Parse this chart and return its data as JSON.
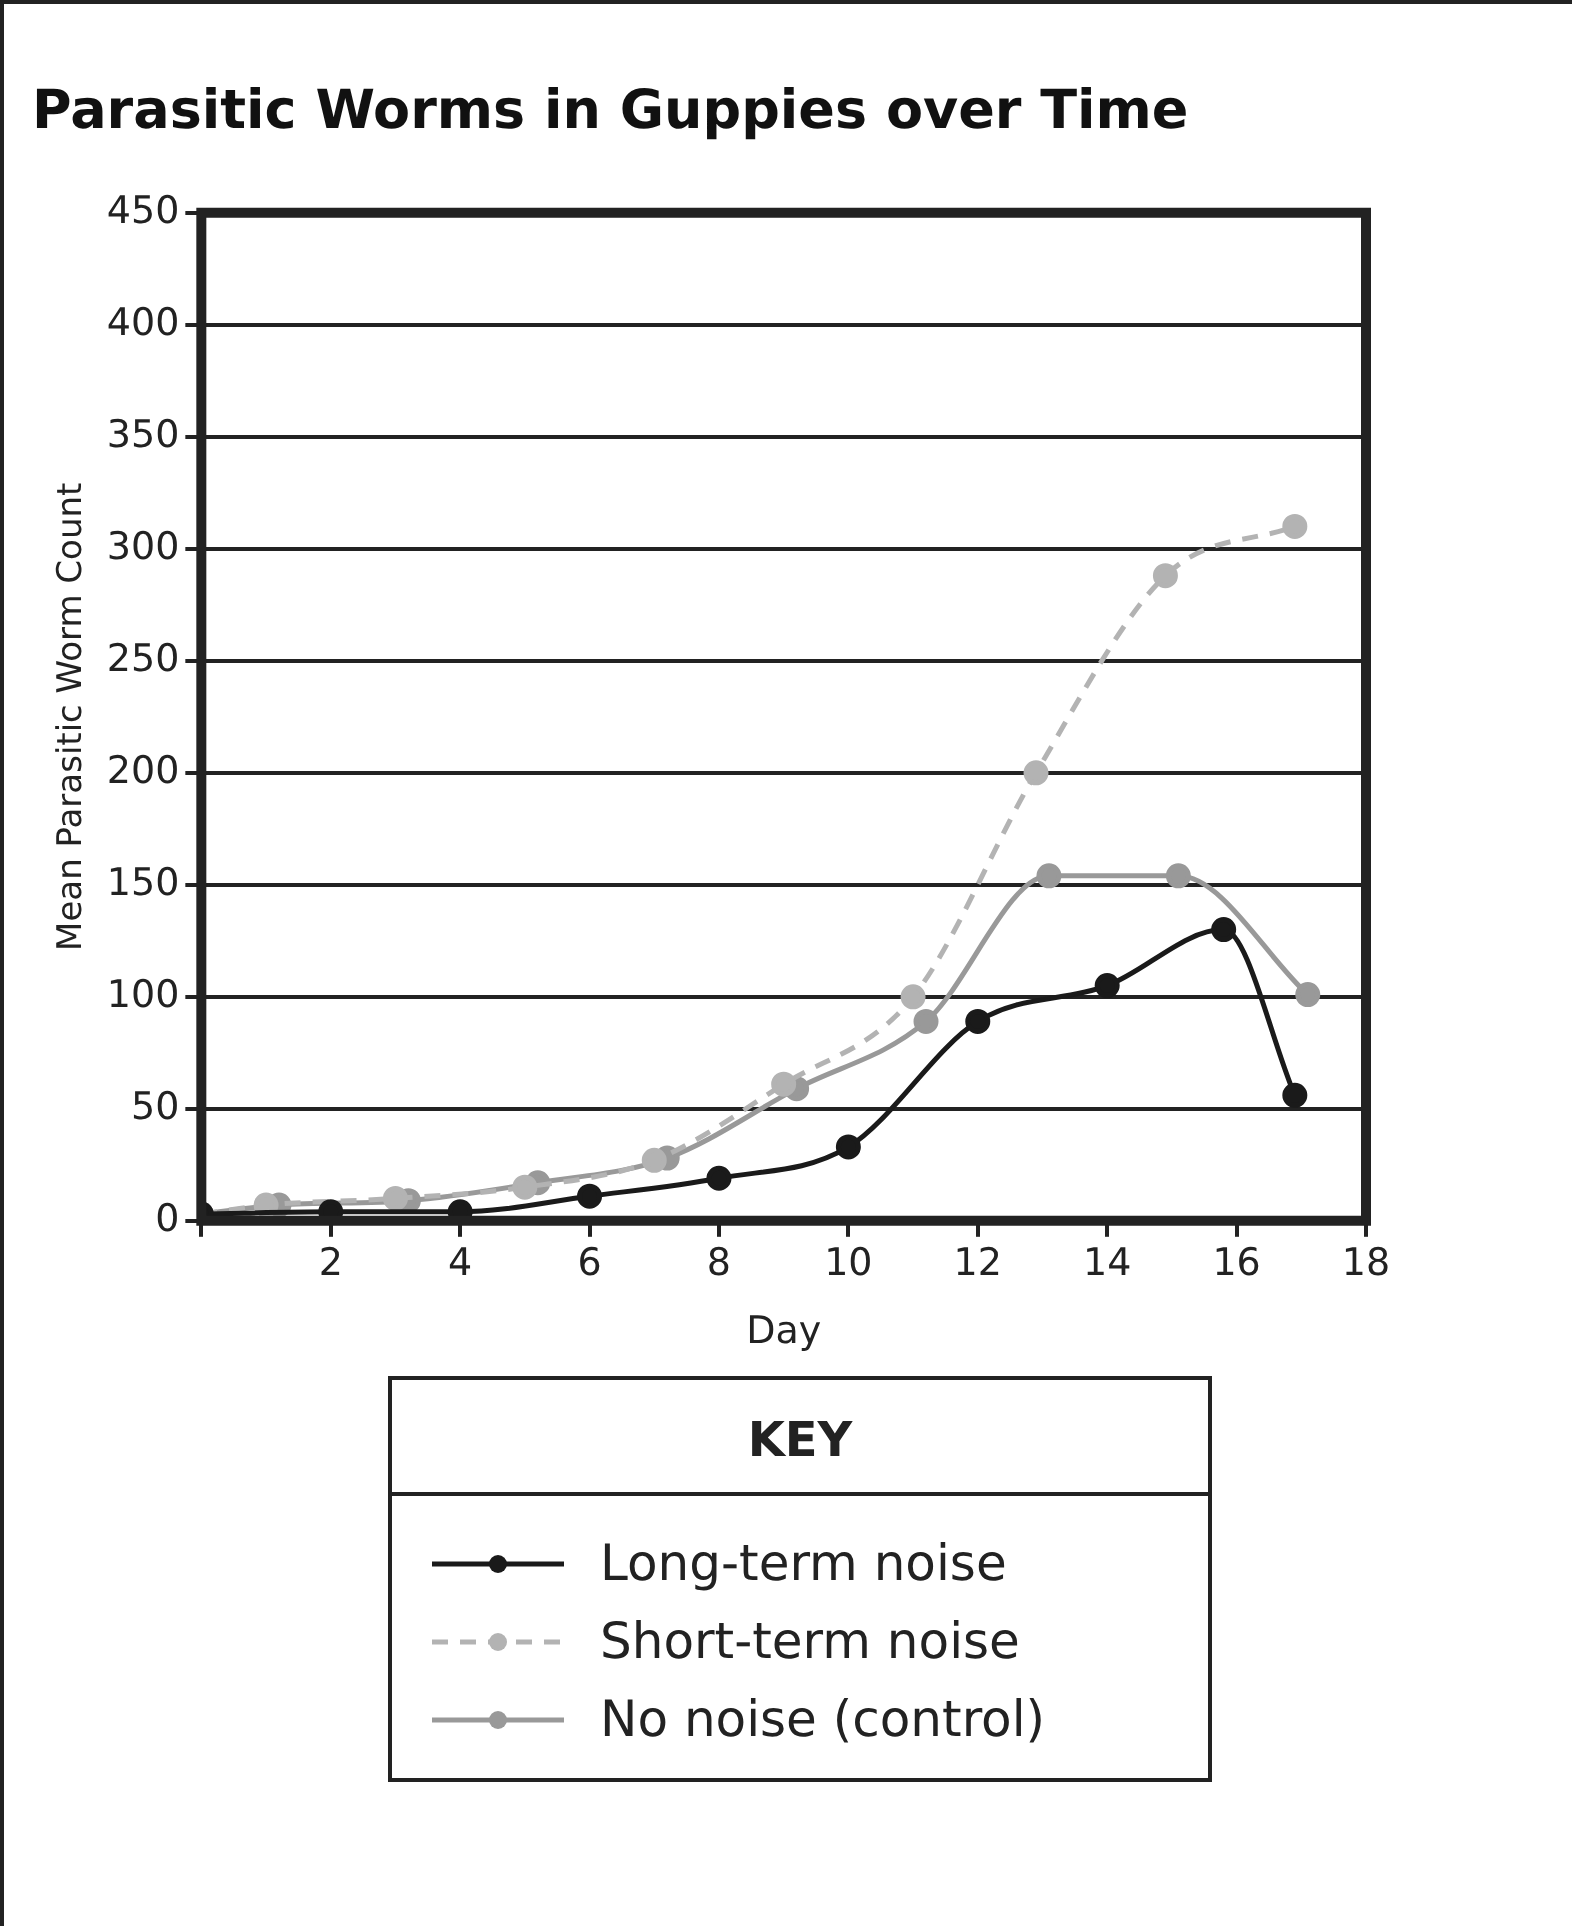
{
  "chart_data": {
    "type": "line",
    "title": "Parasitic Worms in Guppies over Time",
    "xlabel": "Day",
    "ylabel": "Mean Parasitic Worm Count",
    "legend_title": "KEY",
    "xlim": [
      0,
      18
    ],
    "xticks": [
      {
        "value": 0,
        "label": null
      },
      2,
      4,
      6,
      8,
      10,
      12,
      14,
      16,
      18
    ],
    "ylim": [
      0,
      450
    ],
    "yticks": [
      0,
      50,
      100,
      150,
      200,
      250,
      300,
      350,
      400,
      450
    ],
    "grid": "y",
    "legend": "bottom",
    "marker": "circle",
    "series": [
      {
        "name": "Long-term noise",
        "color": "#1a1a1a",
        "line_style": "solid",
        "x": [
          0,
          2,
          4,
          6,
          8,
          10,
          12,
          14,
          15.8,
          16.9
        ],
        "values": [
          3,
          4,
          4,
          11,
          19,
          33,
          89,
          105,
          130,
          56
        ]
      },
      {
        "name": "Short-term noise",
        "color": "#b3b3b3",
        "line_style": "dashed",
        "x": [
          0,
          1,
          3,
          5,
          7,
          9,
          11,
          12.9,
          14.9,
          16.9
        ],
        "values": [
          3,
          7,
          10,
          15,
          27,
          61,
          100,
          200,
          288,
          310
        ]
      },
      {
        "name": "No noise (control)",
        "color": "#999999",
        "line_style": "solid",
        "x": [
          0,
          1.2,
          3.2,
          5.2,
          7.2,
          9.2,
          11.2,
          13.1,
          15.1,
          17.1
        ],
        "values": [
          3,
          7,
          9,
          17,
          28,
          59,
          89,
          154,
          154,
          101
        ]
      }
    ]
  }
}
